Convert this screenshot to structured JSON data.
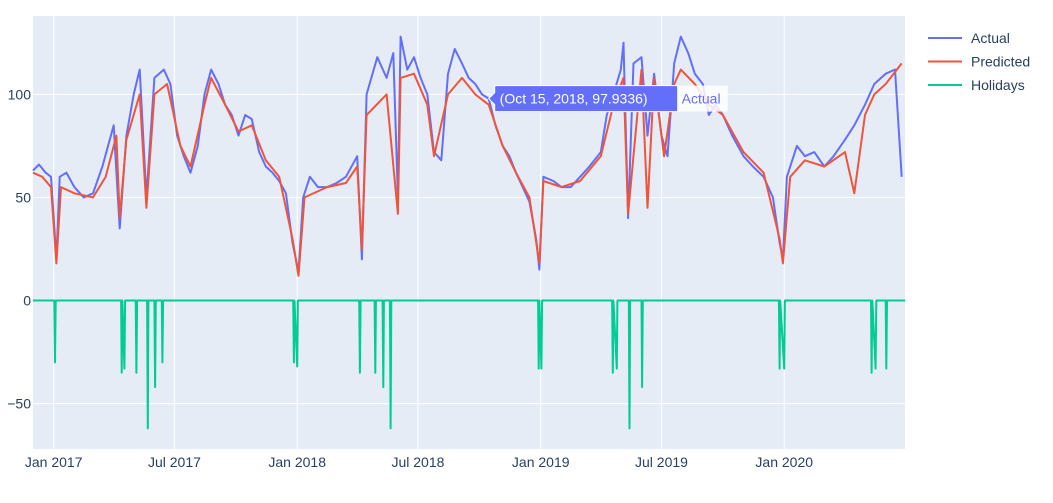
{
  "chart_data": {
    "type": "line",
    "title": "",
    "xlabel": "",
    "ylabel": "",
    "x_range": [
      "2016-12-01",
      "2020-06-30"
    ],
    "ylim": [
      -72,
      138
    ],
    "x_ticks": [
      {
        "date": "2017-01-01",
        "label": "Jan 2017"
      },
      {
        "date": "2017-07-01",
        "label": "Jul 2017"
      },
      {
        "date": "2018-01-01",
        "label": "Jan 2018"
      },
      {
        "date": "2018-07-01",
        "label": "Jul 2018"
      },
      {
        "date": "2019-01-01",
        "label": "Jan 2019"
      },
      {
        "date": "2019-07-01",
        "label": "Jul 2019"
      },
      {
        "date": "2020-01-01",
        "label": "Jan 2020"
      }
    ],
    "y_ticks": [
      {
        "value": -50,
        "label": "−50"
      },
      {
        "value": 0,
        "label": "0"
      },
      {
        "value": 50,
        "label": "50"
      },
      {
        "value": 100,
        "label": "100"
      }
    ],
    "grid": true,
    "plot_background": "#e5ecf6",
    "legend_position": "top-right",
    "series": [
      {
        "name": "Actual",
        "color": "#636efa",
        "points": [
          [
            "2016-12-01",
            63
          ],
          [
            "2016-12-10",
            66
          ],
          [
            "2016-12-20",
            62
          ],
          [
            "2016-12-28",
            60
          ],
          [
            "2017-01-05",
            20
          ],
          [
            "2017-01-10",
            60
          ],
          [
            "2017-01-20",
            62
          ],
          [
            "2017-02-01",
            55
          ],
          [
            "2017-02-15",
            50
          ],
          [
            "2017-03-01",
            52
          ],
          [
            "2017-03-15",
            65
          ],
          [
            "2017-04-01",
            85
          ],
          [
            "2017-04-10",
            35
          ],
          [
            "2017-04-20",
            80
          ],
          [
            "2017-05-01",
            100
          ],
          [
            "2017-05-10",
            112
          ],
          [
            "2017-05-20",
            50
          ],
          [
            "2017-06-01",
            108
          ],
          [
            "2017-06-15",
            112
          ],
          [
            "2017-06-25",
            105
          ],
          [
            "2017-07-05",
            80
          ],
          [
            "2017-07-15",
            70
          ],
          [
            "2017-07-25",
            62
          ],
          [
            "2017-08-05",
            75
          ],
          [
            "2017-08-15",
            100
          ],
          [
            "2017-08-25",
            112
          ],
          [
            "2017-09-05",
            105
          ],
          [
            "2017-09-15",
            95
          ],
          [
            "2017-09-25",
            90
          ],
          [
            "2017-10-05",
            80
          ],
          [
            "2017-10-15",
            90
          ],
          [
            "2017-10-25",
            88
          ],
          [
            "2017-11-05",
            72
          ],
          [
            "2017-11-15",
            65
          ],
          [
            "2017-11-25",
            62
          ],
          [
            "2017-12-05",
            58
          ],
          [
            "2017-12-15",
            52
          ],
          [
            "2017-12-25",
            28
          ],
          [
            "2018-01-03",
            14
          ],
          [
            "2018-01-10",
            50
          ],
          [
            "2018-01-20",
            60
          ],
          [
            "2018-02-01",
            55
          ],
          [
            "2018-02-15",
            55
          ],
          [
            "2018-03-01",
            57
          ],
          [
            "2018-03-15",
            60
          ],
          [
            "2018-04-01",
            70
          ],
          [
            "2018-04-08",
            20
          ],
          [
            "2018-04-15",
            100
          ],
          [
            "2018-05-01",
            118
          ],
          [
            "2018-05-15",
            108
          ],
          [
            "2018-05-25",
            120
          ],
          [
            "2018-06-01",
            50
          ],
          [
            "2018-06-05",
            128
          ],
          [
            "2018-06-15",
            112
          ],
          [
            "2018-06-25",
            118
          ],
          [
            "2018-07-05",
            108
          ],
          [
            "2018-07-15",
            100
          ],
          [
            "2018-07-25",
            72
          ],
          [
            "2018-08-05",
            68
          ],
          [
            "2018-08-15",
            110
          ],
          [
            "2018-08-25",
            122
          ],
          [
            "2018-09-05",
            115
          ],
          [
            "2018-09-15",
            108
          ],
          [
            "2018-09-25",
            105
          ],
          [
            "2018-10-05",
            100
          ],
          [
            "2018-10-15",
            97.9336
          ],
          [
            "2018-10-25",
            85
          ],
          [
            "2018-11-05",
            75
          ],
          [
            "2018-11-15",
            70
          ],
          [
            "2018-11-25",
            62
          ],
          [
            "2018-12-05",
            55
          ],
          [
            "2018-12-15",
            48
          ],
          [
            "2018-12-25",
            30
          ],
          [
            "2018-12-30",
            15
          ],
          [
            "2019-01-05",
            60
          ],
          [
            "2019-01-20",
            58
          ],
          [
            "2019-02-01",
            55
          ],
          [
            "2019-02-15",
            55
          ],
          [
            "2019-03-01",
            60
          ],
          [
            "2019-03-15",
            65
          ],
          [
            "2019-04-01",
            72
          ],
          [
            "2019-04-10",
            90
          ],
          [
            "2019-04-20",
            100
          ],
          [
            "2019-05-01",
            112
          ],
          [
            "2019-05-05",
            125
          ],
          [
            "2019-05-12",
            40
          ],
          [
            "2019-05-20",
            115
          ],
          [
            "2019-06-01",
            118
          ],
          [
            "2019-06-10",
            80
          ],
          [
            "2019-06-20",
            110
          ],
          [
            "2019-07-01",
            80
          ],
          [
            "2019-07-10",
            70
          ],
          [
            "2019-07-20",
            115
          ],
          [
            "2019-07-30",
            128
          ],
          [
            "2019-08-10",
            120
          ],
          [
            "2019-08-20",
            110
          ],
          [
            "2019-09-01",
            105
          ],
          [
            "2019-09-10",
            90
          ],
          [
            "2019-09-20",
            95
          ],
          [
            "2019-10-01",
            90
          ],
          [
            "2019-10-15",
            80
          ],
          [
            "2019-11-01",
            70
          ],
          [
            "2019-11-15",
            65
          ],
          [
            "2019-12-01",
            60
          ],
          [
            "2019-12-15",
            50
          ],
          [
            "2019-12-25",
            28
          ],
          [
            "2019-12-30",
            20
          ],
          [
            "2020-01-05",
            60
          ],
          [
            "2020-01-20",
            75
          ],
          [
            "2020-02-01",
            70
          ],
          [
            "2020-02-15",
            72
          ],
          [
            "2020-03-01",
            65
          ],
          [
            "2020-03-15",
            70
          ],
          [
            "2020-04-01",
            78
          ],
          [
            "2020-04-15",
            85
          ],
          [
            "2020-05-01",
            95
          ],
          [
            "2020-05-15",
            105
          ],
          [
            "2020-06-01",
            110
          ],
          [
            "2020-06-15",
            112
          ],
          [
            "2020-06-25",
            60
          ]
        ]
      },
      {
        "name": "Predicted",
        "color": "#ef553b",
        "points": [
          [
            "2016-12-01",
            62
          ],
          [
            "2016-12-15",
            60
          ],
          [
            "2016-12-28",
            55
          ],
          [
            "2017-01-05",
            18
          ],
          [
            "2017-01-12",
            55
          ],
          [
            "2017-02-01",
            52
          ],
          [
            "2017-03-01",
            50
          ],
          [
            "2017-03-20",
            60
          ],
          [
            "2017-04-05",
            80
          ],
          [
            "2017-04-10",
            40
          ],
          [
            "2017-04-20",
            78
          ],
          [
            "2017-05-10",
            100
          ],
          [
            "2017-05-20",
            45
          ],
          [
            "2017-06-01",
            100
          ],
          [
            "2017-06-20",
            105
          ],
          [
            "2017-07-10",
            75
          ],
          [
            "2017-07-25",
            65
          ],
          [
            "2017-08-15",
            95
          ],
          [
            "2017-08-25",
            108
          ],
          [
            "2017-09-15",
            95
          ],
          [
            "2017-10-05",
            82
          ],
          [
            "2017-10-25",
            85
          ],
          [
            "2017-11-15",
            68
          ],
          [
            "2017-12-05",
            60
          ],
          [
            "2017-12-25",
            30
          ],
          [
            "2018-01-03",
            12
          ],
          [
            "2018-01-12",
            50
          ],
          [
            "2018-02-15",
            55
          ],
          [
            "2018-03-15",
            57
          ],
          [
            "2018-04-01",
            65
          ],
          [
            "2018-04-08",
            25
          ],
          [
            "2018-04-15",
            90
          ],
          [
            "2018-05-15",
            100
          ],
          [
            "2018-06-01",
            42
          ],
          [
            "2018-06-05",
            108
          ],
          [
            "2018-06-25",
            110
          ],
          [
            "2018-07-15",
            95
          ],
          [
            "2018-07-25",
            70
          ],
          [
            "2018-08-15",
            100
          ],
          [
            "2018-09-05",
            108
          ],
          [
            "2018-09-25",
            100
          ],
          [
            "2018-10-15",
            95
          ],
          [
            "2018-11-05",
            75
          ],
          [
            "2018-11-25",
            62
          ],
          [
            "2018-12-15",
            50
          ],
          [
            "2018-12-30",
            18
          ],
          [
            "2019-01-05",
            58
          ],
          [
            "2019-02-01",
            55
          ],
          [
            "2019-03-01",
            58
          ],
          [
            "2019-04-01",
            70
          ],
          [
            "2019-04-20",
            95
          ],
          [
            "2019-05-05",
            108
          ],
          [
            "2019-05-12",
            42
          ],
          [
            "2019-06-01",
            112
          ],
          [
            "2019-06-10",
            45
          ],
          [
            "2019-06-20",
            108
          ],
          [
            "2019-07-05",
            70
          ],
          [
            "2019-07-20",
            105
          ],
          [
            "2019-07-30",
            112
          ],
          [
            "2019-08-20",
            105
          ],
          [
            "2019-09-10",
            95
          ],
          [
            "2019-10-01",
            90
          ],
          [
            "2019-11-01",
            72
          ],
          [
            "2019-12-01",
            62
          ],
          [
            "2019-12-25",
            30
          ],
          [
            "2019-12-30",
            18
          ],
          [
            "2020-01-10",
            60
          ],
          [
            "2020-02-01",
            68
          ],
          [
            "2020-03-01",
            65
          ],
          [
            "2020-04-01",
            72
          ],
          [
            "2020-04-15",
            52
          ],
          [
            "2020-05-01",
            90
          ],
          [
            "2020-05-15",
            100
          ],
          [
            "2020-06-01",
            105
          ],
          [
            "2020-06-25",
            115
          ]
        ]
      },
      {
        "name": "Holidays",
        "color": "#00cc96",
        "points": [
          [
            "2016-12-01",
            0
          ],
          [
            "2017-01-02",
            0
          ],
          [
            "2017-01-03",
            -30
          ],
          [
            "2017-01-04",
            0
          ],
          [
            "2017-04-12",
            0
          ],
          [
            "2017-04-13",
            -35
          ],
          [
            "2017-04-14",
            0
          ],
          [
            "2017-04-17",
            -33
          ],
          [
            "2017-04-18",
            0
          ],
          [
            "2017-05-04",
            0
          ],
          [
            "2017-05-05",
            -35
          ],
          [
            "2017-05-06",
            0
          ],
          [
            "2017-05-21",
            0
          ],
          [
            "2017-05-22",
            -62
          ],
          [
            "2017-05-23",
            0
          ],
          [
            "2017-06-01",
            0
          ],
          [
            "2017-06-02",
            -42
          ],
          [
            "2017-06-03",
            0
          ],
          [
            "2017-06-12",
            0
          ],
          [
            "2017-06-13",
            -30
          ],
          [
            "2017-06-14",
            0
          ],
          [
            "2017-12-26",
            0
          ],
          [
            "2017-12-27",
            -30
          ],
          [
            "2017-12-28",
            0
          ],
          [
            "2018-01-01",
            -32
          ],
          [
            "2018-01-02",
            0
          ],
          [
            "2018-04-04",
            0
          ],
          [
            "2018-04-05",
            -35
          ],
          [
            "2018-04-06",
            0
          ],
          [
            "2018-04-27",
            0
          ],
          [
            "2018-04-28",
            -35
          ],
          [
            "2018-04-29",
            0
          ],
          [
            "2018-05-09",
            0
          ],
          [
            "2018-05-10",
            -42
          ],
          [
            "2018-05-11",
            0
          ],
          [
            "2018-05-20",
            0
          ],
          [
            "2018-05-21",
            -62
          ],
          [
            "2018-05-22",
            0
          ],
          [
            "2018-12-28",
            0
          ],
          [
            "2018-12-29",
            -33
          ],
          [
            "2018-12-30",
            0
          ],
          [
            "2019-01-02",
            -33
          ],
          [
            "2019-01-03",
            0
          ],
          [
            "2019-04-18",
            0
          ],
          [
            "2019-04-19",
            -35
          ],
          [
            "2019-04-20",
            0
          ],
          [
            "2019-04-25",
            -33
          ],
          [
            "2019-04-26",
            0
          ],
          [
            "2019-05-13",
            0
          ],
          [
            "2019-05-14",
            -62
          ],
          [
            "2019-05-15",
            0
          ],
          [
            "2019-06-01",
            0
          ],
          [
            "2019-06-02",
            -42
          ],
          [
            "2019-06-03",
            0
          ],
          [
            "2019-12-24",
            0
          ],
          [
            "2019-12-25",
            -33
          ],
          [
            "2019-12-26",
            0
          ],
          [
            "2020-01-01",
            -33
          ],
          [
            "2020-01-02",
            0
          ],
          [
            "2020-05-10",
            0
          ],
          [
            "2020-05-11",
            -35
          ],
          [
            "2020-05-12",
            0
          ],
          [
            "2020-05-17",
            -33
          ],
          [
            "2020-05-18",
            0
          ],
          [
            "2020-06-01",
            0
          ],
          [
            "2020-06-02",
            -33
          ],
          [
            "2020-06-03",
            0
          ],
          [
            "2020-06-30",
            0
          ]
        ]
      }
    ],
    "hover": {
      "series": "Actual",
      "date": "2018-10-15",
      "value": 97.9336,
      "text": "(Oct 15, 2018, 97.9336)",
      "name": "Actual"
    }
  }
}
